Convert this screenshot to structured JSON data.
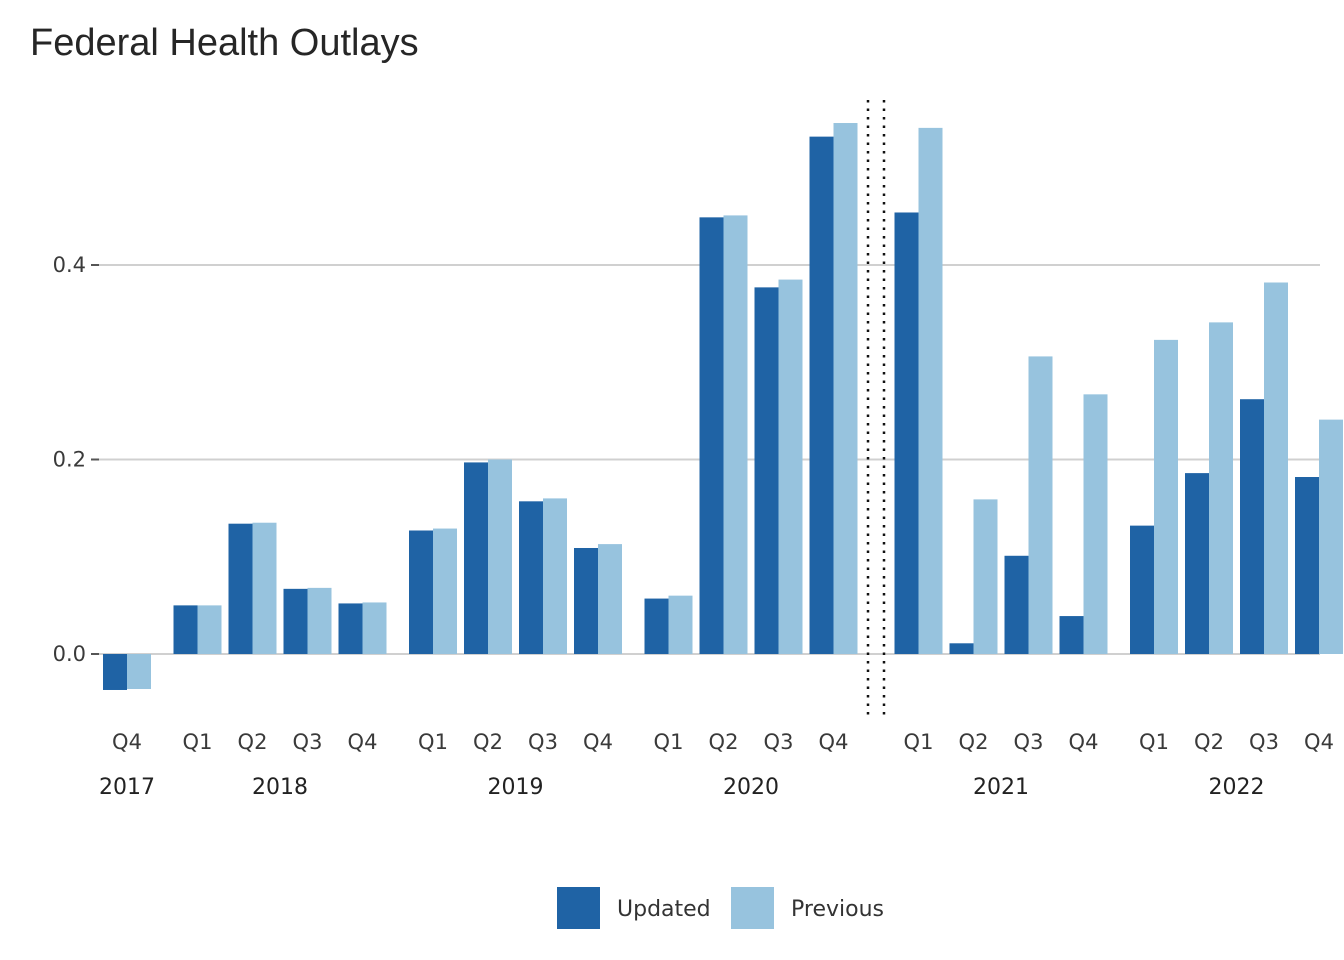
{
  "chart_data": {
    "type": "bar",
    "title": "Federal Health Outlays",
    "xlabel": "",
    "ylabel": "",
    "ylim": [
      -0.075,
      0.58
    ],
    "yticks": [
      0.0,
      0.2,
      0.4
    ],
    "ytick_labels": [
      "0.0",
      "0.2",
      "0.4"
    ],
    "grid": "horizontal",
    "legend_position": "bottom",
    "divider_after_category": "2020 Q4",
    "groups": [
      {
        "year": "2017",
        "quarters": [
          "Q4"
        ]
      },
      {
        "year": "2018",
        "quarters": [
          "Q1",
          "Q2",
          "Q3",
          "Q4"
        ]
      },
      {
        "year": "2019",
        "quarters": [
          "Q1",
          "Q2",
          "Q3",
          "Q4"
        ]
      },
      {
        "year": "2020",
        "quarters": [
          "Q1",
          "Q2",
          "Q3",
          "Q4"
        ]
      },
      {
        "year": "2021",
        "quarters": [
          "Q1",
          "Q2",
          "Q3",
          "Q4"
        ]
      },
      {
        "year": "2022",
        "quarters": [
          "Q1",
          "Q2",
          "Q3",
          "Q4"
        ]
      }
    ],
    "series": [
      {
        "name": "Updated",
        "color": "#1f63a5",
        "values": [
          -0.037,
          0.05,
          0.134,
          0.067,
          0.052,
          0.127,
          0.197,
          0.157,
          0.109,
          0.057,
          0.449,
          0.377,
          0.532,
          0.454,
          0.011,
          0.101,
          0.039,
          0.132,
          0.186,
          0.262,
          0.182
        ]
      },
      {
        "name": "Previous",
        "color": "#97c3de",
        "values": [
          -0.036,
          0.05,
          0.135,
          0.068,
          0.053,
          0.129,
          0.2,
          0.16,
          0.113,
          0.06,
          0.451,
          0.385,
          0.546,
          0.541,
          0.159,
          0.306,
          0.267,
          0.323,
          0.341,
          0.382,
          0.241
        ]
      }
    ]
  }
}
